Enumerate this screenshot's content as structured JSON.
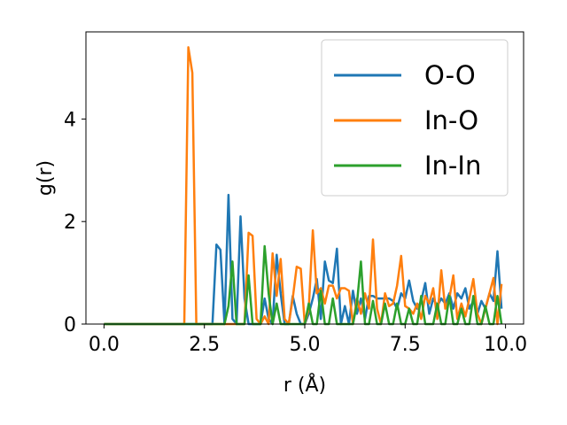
{
  "chart_data": {
    "type": "line",
    "xlabel": "r (Å)",
    "ylabel": "g(r)",
    "xlim": [
      -0.45,
      10.45
    ],
    "ylim": [
      0,
      5.7
    ],
    "xticks": [
      0.0,
      2.5,
      5.0,
      7.5,
      10.0
    ],
    "xtick_labels": [
      "0.0",
      "2.5",
      "5.0",
      "7.5",
      "10.0"
    ],
    "yticks": [
      0,
      2,
      4
    ],
    "ytick_labels": [
      "0",
      "2",
      "4"
    ],
    "legend_position": "top-right",
    "grid": false,
    "series": [
      {
        "name": "O-O",
        "color": "#1f77b4",
        "points": [
          [
            0.0,
            0
          ],
          [
            2.7,
            0
          ],
          [
            2.8,
            1.55
          ],
          [
            2.9,
            1.45
          ],
          [
            3.0,
            0
          ],
          [
            3.1,
            2.52
          ],
          [
            3.2,
            0.1
          ],
          [
            3.3,
            0
          ],
          [
            3.4,
            2.1
          ],
          [
            3.5,
            0.5
          ],
          [
            3.6,
            0.0
          ],
          [
            3.7,
            0
          ],
          [
            3.8,
            0
          ],
          [
            3.9,
            0
          ],
          [
            4.0,
            0.5
          ],
          [
            4.1,
            0.1
          ],
          [
            4.2,
            0.0
          ],
          [
            4.3,
            1.35
          ],
          [
            4.4,
            0.6
          ],
          [
            4.5,
            0.0
          ],
          [
            4.6,
            0
          ],
          [
            4.7,
            0.55
          ],
          [
            4.8,
            0.2
          ],
          [
            4.9,
            0.0
          ],
          [
            5.0,
            0
          ],
          [
            5.1,
            0.2
          ],
          [
            5.2,
            0.5
          ],
          [
            5.3,
            0.88
          ],
          [
            5.4,
            0.1
          ],
          [
            5.5,
            1.22
          ],
          [
            5.6,
            0.85
          ],
          [
            5.7,
            0.8
          ],
          [
            5.8,
            1.47
          ],
          [
            5.9,
            0.0
          ],
          [
            6.0,
            0.35
          ],
          [
            6.1,
            0.0
          ],
          [
            6.2,
            0.65
          ],
          [
            6.3,
            0.2
          ],
          [
            6.4,
            0.5
          ],
          [
            6.5,
            0.1
          ],
          [
            6.6,
            0.55
          ],
          [
            6.7,
            0.55
          ],
          [
            6.8,
            0.5
          ],
          [
            6.9,
            0.5
          ],
          [
            7.0,
            0.5
          ],
          [
            7.1,
            0.5
          ],
          [
            7.2,
            0.45
          ],
          [
            7.3,
            0.3
          ],
          [
            7.4,
            0.6
          ],
          [
            7.5,
            0.5
          ],
          [
            7.6,
            0.85
          ],
          [
            7.7,
            0.45
          ],
          [
            7.8,
            0.3
          ],
          [
            7.9,
            0.45
          ],
          [
            8.0,
            0.8
          ],
          [
            8.1,
            0.2
          ],
          [
            8.2,
            0.5
          ],
          [
            8.3,
            0.35
          ],
          [
            8.4,
            0.5
          ],
          [
            8.5,
            0.4
          ],
          [
            8.6,
            0.6
          ],
          [
            8.7,
            0.3
          ],
          [
            8.8,
            0.6
          ],
          [
            8.9,
            0.5
          ],
          [
            9.0,
            0.7
          ],
          [
            9.1,
            0.3
          ],
          [
            9.2,
            0.45
          ],
          [
            9.3,
            0.2
          ],
          [
            9.4,
            0.45
          ],
          [
            9.5,
            0.3
          ],
          [
            9.6,
            0.6
          ],
          [
            9.7,
            0.45
          ],
          [
            9.8,
            1.42
          ],
          [
            9.9,
            0.3
          ]
        ]
      },
      {
        "name": "In-O",
        "color": "#ff7f0e",
        "points": [
          [
            0.0,
            0
          ],
          [
            2.0,
            0
          ],
          [
            2.1,
            5.4
          ],
          [
            2.2,
            4.9
          ],
          [
            2.3,
            0
          ],
          [
            3.5,
            0
          ],
          [
            3.6,
            1.78
          ],
          [
            3.7,
            1.72
          ],
          [
            3.8,
            0.1
          ],
          [
            3.9,
            0.0
          ],
          [
            4.0,
            0.15
          ],
          [
            4.1,
            0.0
          ],
          [
            4.2,
            1.38
          ],
          [
            4.3,
            0.55
          ],
          [
            4.4,
            1.27
          ],
          [
            4.5,
            0.1
          ],
          [
            4.6,
            0.0
          ],
          [
            4.7,
            0.5
          ],
          [
            4.8,
            1.12
          ],
          [
            4.9,
            1.08
          ],
          [
            5.0,
            0.0
          ],
          [
            5.1,
            0.3
          ],
          [
            5.2,
            1.83
          ],
          [
            5.3,
            0.6
          ],
          [
            5.4,
            0.7
          ],
          [
            5.5,
            0.4
          ],
          [
            5.6,
            0.75
          ],
          [
            5.7,
            0.75
          ],
          [
            5.8,
            0.5
          ],
          [
            5.9,
            0.7
          ],
          [
            6.0,
            0.7
          ],
          [
            6.1,
            0.65
          ],
          [
            6.2,
            0.0
          ],
          [
            6.3,
            0.5
          ],
          [
            6.4,
            0.2
          ],
          [
            6.5,
            0.6
          ],
          [
            6.6,
            0.3
          ],
          [
            6.7,
            1.65
          ],
          [
            6.8,
            0.3
          ],
          [
            6.9,
            0.0
          ],
          [
            7.0,
            0.6
          ],
          [
            7.1,
            0.35
          ],
          [
            7.2,
            0.4
          ],
          [
            7.3,
            0.75
          ],
          [
            7.4,
            1.33
          ],
          [
            7.5,
            0.35
          ],
          [
            7.6,
            0.3
          ],
          [
            7.7,
            0.2
          ],
          [
            7.8,
            0.4
          ],
          [
            7.9,
            0.1
          ],
          [
            8.0,
            0.55
          ],
          [
            8.1,
            0.4
          ],
          [
            8.2,
            0.7
          ],
          [
            8.3,
            0.1
          ],
          [
            8.4,
            1.05
          ],
          [
            8.5,
            0.3
          ],
          [
            8.6,
            0.5
          ],
          [
            8.7,
            0.95
          ],
          [
            8.8,
            0.1
          ],
          [
            8.9,
            0.4
          ],
          [
            9.0,
            0.15
          ],
          [
            9.1,
            0.5
          ],
          [
            9.2,
            0.88
          ],
          [
            9.3,
            0.2
          ],
          [
            9.4,
            0.0
          ],
          [
            9.5,
            0.3
          ],
          [
            9.6,
            0.6
          ],
          [
            9.7,
            0.9
          ],
          [
            9.8,
            0.0
          ],
          [
            9.9,
            0.78
          ]
        ]
      },
      {
        "name": "In-In",
        "color": "#2ca02c",
        "points": [
          [
            0.0,
            0
          ],
          [
            2.9,
            0
          ],
          [
            3.0,
            0.0
          ],
          [
            3.1,
            0.35
          ],
          [
            3.2,
            1.22
          ],
          [
            3.3,
            0.0
          ],
          [
            3.4,
            0.0
          ],
          [
            3.5,
            0.0
          ],
          [
            3.6,
            0.95
          ],
          [
            3.7,
            0.0
          ],
          [
            3.8,
            0.0
          ],
          [
            3.9,
            0.0
          ],
          [
            4.0,
            1.52
          ],
          [
            4.1,
            0.6
          ],
          [
            4.2,
            0.0
          ],
          [
            4.3,
            0.4
          ],
          [
            4.4,
            0.0
          ],
          [
            4.5,
            0.0
          ],
          [
            4.6,
            0.0
          ],
          [
            4.7,
            0.0
          ],
          [
            4.8,
            0.0
          ],
          [
            4.9,
            0.0
          ],
          [
            5.0,
            0.0
          ],
          [
            5.1,
            0.4
          ],
          [
            5.2,
            0.0
          ],
          [
            5.3,
            0.0
          ],
          [
            5.4,
            0.65
          ],
          [
            5.5,
            0.0
          ],
          [
            5.6,
            0.0
          ],
          [
            5.7,
            0.5
          ],
          [
            5.8,
            0.0
          ],
          [
            5.9,
            0.0
          ],
          [
            6.0,
            0.0
          ],
          [
            6.1,
            0.0
          ],
          [
            6.2,
            0.0
          ],
          [
            6.3,
            0.4
          ],
          [
            6.4,
            1.22
          ],
          [
            6.5,
            0.0
          ],
          [
            6.6,
            0.0
          ],
          [
            6.7,
            0.45
          ],
          [
            6.8,
            0.0
          ],
          [
            6.9,
            0.0
          ],
          [
            7.0,
            0.4
          ],
          [
            7.1,
            0.0
          ],
          [
            7.2,
            0.0
          ],
          [
            7.3,
            0.4
          ],
          [
            7.4,
            0.0
          ],
          [
            7.5,
            0.0
          ],
          [
            7.6,
            0.3
          ],
          [
            7.7,
            0.0
          ],
          [
            7.8,
            0.0
          ],
          [
            7.9,
            0.55
          ],
          [
            8.0,
            0.0
          ],
          [
            8.1,
            0.0
          ],
          [
            8.2,
            0.0
          ],
          [
            8.3,
            0.4
          ],
          [
            8.4,
            0.0
          ],
          [
            8.5,
            0.0
          ],
          [
            8.6,
            0.55
          ],
          [
            8.7,
            0.0
          ],
          [
            8.8,
            0.0
          ],
          [
            8.9,
            0.3
          ],
          [
            9.0,
            0.0
          ],
          [
            9.1,
            0.0
          ],
          [
            9.2,
            0.55
          ],
          [
            9.3,
            0.0
          ],
          [
            9.4,
            0.0
          ],
          [
            9.5,
            0.35
          ],
          [
            9.6,
            0.0
          ],
          [
            9.7,
            0.0
          ],
          [
            9.8,
            0.55
          ],
          [
            9.9,
            0.0
          ]
        ]
      }
    ]
  }
}
